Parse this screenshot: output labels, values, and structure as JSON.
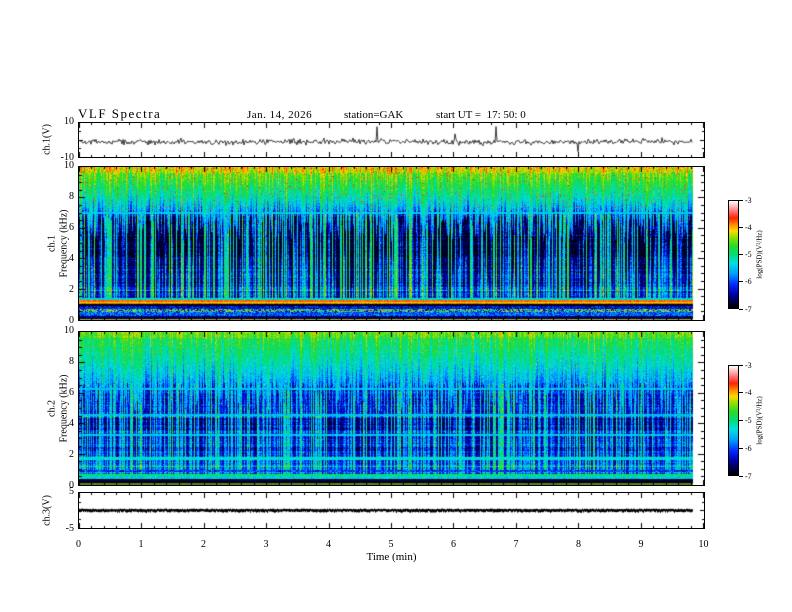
{
  "header": {
    "title": "VLF Spectra",
    "date": "Jan. 14, 2026",
    "station": "station=GAK",
    "start_ut": "start UT =  17: 50: 0"
  },
  "x_axis": {
    "label": "Time (min)",
    "range": [
      0,
      10
    ],
    "major_tick_step": 1,
    "minor_tick_step": 0.2,
    "tick_labels": [
      "0",
      "1",
      "2",
      "3",
      "4",
      "5",
      "6",
      "7",
      "8",
      "9",
      "10"
    ]
  },
  "panels": [
    {
      "id": "ch1_wave",
      "name": "ch.1 waveform",
      "ylabel": "ch.1(V)",
      "yrange": [
        -10,
        10
      ],
      "ytick_labels": [
        {
          "value": 10,
          "label": "10"
        },
        {
          "value": -10,
          "label": "-10"
        }
      ]
    },
    {
      "id": "ch1_spec",
      "name": "ch.1 spectrogram",
      "ylabel_lines": [
        "ch.1",
        "Frequency (kHz)"
      ],
      "yrange": [
        0,
        10
      ],
      "ytick_labels": [
        {
          "value": 10,
          "label": "10"
        },
        {
          "value": 8,
          "label": "8"
        },
        {
          "value": 6,
          "label": "6"
        },
        {
          "value": 4,
          "label": "4"
        },
        {
          "value": 2,
          "label": "2"
        },
        {
          "value": 0,
          "label": "0"
        }
      ]
    },
    {
      "id": "ch2_spec",
      "name": "ch.2 spectrogram",
      "ylabel_lines": [
        "ch.2",
        "Frequency (kHz)"
      ],
      "yrange": [
        0,
        10
      ],
      "ytick_labels": [
        {
          "value": 10,
          "label": "10"
        },
        {
          "value": 8,
          "label": "8"
        },
        {
          "value": 6,
          "label": "6"
        },
        {
          "value": 4,
          "label": "4"
        },
        {
          "value": 2,
          "label": "2"
        },
        {
          "value": 0,
          "label": "0"
        }
      ]
    },
    {
      "id": "ch3_wave",
      "name": "ch.3 waveform",
      "ylabel": "ch.3(V)",
      "yrange": [
        -5,
        5
      ],
      "ytick_labels": [
        {
          "value": 5,
          "label": "5"
        },
        {
          "value": -5,
          "label": "-5"
        }
      ]
    }
  ],
  "colorbar": {
    "label": "log(PSD)(V²/Hz)",
    "range": [
      -7,
      -3
    ],
    "tick_values": [
      -3,
      -4,
      -5,
      -6,
      -7
    ],
    "tick_labels": [
      "-3",
      "-4",
      "-5",
      "-6",
      "-7"
    ]
  },
  "colormap": [
    [
      0.0,
      "#000000"
    ],
    [
      0.05,
      "#000038"
    ],
    [
      0.13,
      "#0000a8"
    ],
    [
      0.22,
      "#0028ff"
    ],
    [
      0.32,
      "#009cff"
    ],
    [
      0.42,
      "#00e0e0"
    ],
    [
      0.5,
      "#00dc78"
    ],
    [
      0.58,
      "#28dc28"
    ],
    [
      0.66,
      "#90e000"
    ],
    [
      0.72,
      "#ffd800"
    ],
    [
      0.78,
      "#ff8800"
    ],
    [
      0.84,
      "#ff2400"
    ],
    [
      0.9,
      "#ff7070"
    ],
    [
      0.95,
      "#ffb8b8"
    ],
    [
      1.0,
      "#ffffff"
    ]
  ],
  "chart_data": [
    {
      "type": "line",
      "panel": "ch.1 voltage",
      "ylabel": "ch.1(V)",
      "xlim": [
        0,
        10
      ],
      "ylim": [
        -10,
        10
      ],
      "baseline_v": -1.6,
      "noise_sigma_v": 0.85,
      "spike_probability": 0.012,
      "spike_amplitude_v": [
        3,
        9
      ],
      "data_end_min": 9.82,
      "seed": 42
    },
    {
      "type": "heatmap",
      "panel": "ch.1 spectrogram",
      "xlim": [
        0,
        10
      ],
      "ylim": [
        0,
        10
      ],
      "zlim": [
        -7,
        -3
      ],
      "zlabel": "log(PSD)(V²/Hz)",
      "data_end_min": 9.82,
      "seed": 7,
      "mid_level": -6.78,
      "pixel_noise": 0.3,
      "row_noise": 0.18,
      "bright_row_prob": 0.02,
      "top_band": {
        "f_start": 7.15,
        "finger_depth": 2.1,
        "level_top": -4.5,
        "level_bottom": -6.25,
        "speck_prob": 0.02,
        "speck_level": -3.45,
        "streak_gain": 0.3
      },
      "streaks": {
        "strong_prob": 0.3,
        "strong_boost": [
          1.2,
          2.2
        ],
        "medium_prob": 0.35,
        "medium_boost": [
          0.45,
          1.1
        ],
        "weak_boost": [
          0,
          0.3
        ]
      },
      "features": [
        {
          "f": [
            7.08,
            6.95
          ],
          "level": -5.45,
          "noise": 0.15,
          "label": "cyan line ~7 kHz"
        },
        {
          "f": [
            5.6,
            4.2
          ],
          "level_add": -0.1
        },
        {
          "f": [
            3.6,
            2.6
          ],
          "level_add": 0.1
        },
        {
          "f": [
            2.2,
            1.5
          ],
          "level_add": 0.18
        },
        {
          "f": [
            1.42,
            1.3
          ],
          "level": -5.3,
          "noise": 0.25
        },
        {
          "f": [
            1.28,
            1.0
          ],
          "level": -3.8,
          "noise": 0.12,
          "label": "strong red-orange band ~1.1 kHz"
        },
        {
          "f": [
            1.14,
            1.08
          ],
          "level": -4.25,
          "noise": 0.1,
          "label": "yellow line"
        },
        {
          "f": [
            1.0,
            0.86
          ],
          "level": -6.9,
          "noise": 0.15
        },
        {
          "f": [
            0.86,
            0.7
          ],
          "level": -6.3,
          "noise": 0.45
        },
        {
          "f": [
            0.7,
            0.48
          ],
          "level": -5.3,
          "noise": 1.5,
          "label": "multicolour speckle band"
        },
        {
          "f": [
            0.48,
            0.2
          ],
          "level": -5.95,
          "noise": 0.5
        },
        {
          "f": [
            0.2,
            0.06
          ],
          "level": -6.65,
          "noise": 0.25
        },
        {
          "f": [
            0.06,
            0.0
          ],
          "level": -4.2,
          "noise": 0.15,
          "dim": 0.75
        }
      ]
    },
    {
      "type": "heatmap",
      "panel": "ch.2 spectrogram",
      "xlim": [
        0,
        10
      ],
      "ylim": [
        0,
        10
      ],
      "zlim": [
        -7,
        -3
      ],
      "zlabel": "log(PSD)(V²/Hz)",
      "data_end_min": 9.82,
      "seed": 13,
      "mid_level": -6.42,
      "pixel_noise": 0.28,
      "row_noise": 0.2,
      "bright_row_prob": 0.04,
      "top_band": {
        "f_start": 6.7,
        "finger_depth": 2.3,
        "level_top": -4.9,
        "level_bottom": -6.15,
        "speck_prob": 0.005,
        "speck_level": -3.8,
        "streak_gain": 0.4
      },
      "streaks": {
        "strong_prob": 0.28,
        "strong_boost": [
          0.9,
          1.7
        ],
        "medium_prob": 0.38,
        "medium_boost": [
          0.4,
          0.9
        ],
        "weak_boost": [
          0,
          0.3
        ]
      },
      "features": [
        {
          "f": [
            6.38,
            6.25
          ],
          "level": -5.5,
          "noise": 0.15,
          "label": "cyan line ~6.3 kHz"
        },
        {
          "f": [
            4.62,
            4.5
          ],
          "level": -5.5,
          "noise": 0.15,
          "label": "cyan line ~4.6 kHz"
        },
        {
          "f": [
            3.32,
            3.2
          ],
          "level": -5.45,
          "noise": 0.15,
          "label": "cyan line ~3.3 kHz"
        },
        {
          "f": [
            1.78,
            1.64
          ],
          "level": -5.3,
          "noise": 0.15,
          "label": "cyan line ~1.7 kHz"
        },
        {
          "f": [
            4.4,
            3.6
          ],
          "level_add": -0.25
        },
        {
          "f": [
            2.6,
            1.9
          ],
          "level_add": -0.2
        },
        {
          "f": [
            1.2,
            1.0
          ],
          "level_add": 0.15
        },
        {
          "f": [
            0.95,
            0.8
          ],
          "level": -6.1,
          "noise": 0.4
        },
        {
          "f": [
            0.66,
            0.56
          ],
          "level": -4.95,
          "noise": 0.25,
          "label": "green-yellow line ~0.6 kHz"
        },
        {
          "f": [
            0.56,
            0.36
          ],
          "level": -5.4,
          "noise": 0.3,
          "label": "pale cyan band"
        },
        {
          "f": [
            0.36,
            0.1
          ],
          "level": -6.85,
          "noise": 0.2
        },
        {
          "f": [
            0.1,
            0.0
          ],
          "level": -4.4,
          "noise": 0.15,
          "dim": 0.6
        }
      ]
    },
    {
      "type": "line",
      "panel": "ch.3 voltage",
      "ylabel": "ch.3(V)",
      "xlim": [
        0,
        10
      ],
      "ylim": [
        -5,
        5
      ],
      "constant_value_v": 0,
      "trace_thickness_v": 0.8,
      "data_end_min": 9.82,
      "seed": 99
    }
  ]
}
